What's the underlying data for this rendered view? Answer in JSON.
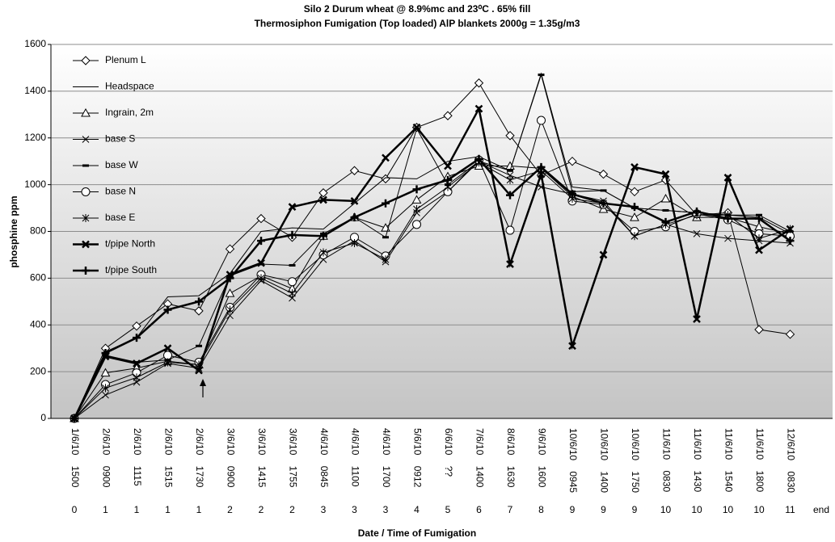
{
  "chart_data": {
    "type": "line",
    "title": "Silo 2 Durum wheat @ 8.9%mc and 23⁰C . 65% fill",
    "subtitle": "Thermosiphon Fumigation (Top loaded) AlP blankets 2000g = 1.35g/m3",
    "ylabel": "phosphine ppm",
    "xlabel": "Date / Time of Fumigation",
    "categories": [
      "1/6/10 1500",
      "2/6/10 0900",
      "2/6/10 1115",
      "2/6/10 1515",
      "2/6/10 1730",
      "3/6/10 0900",
      "3/6/10 1415",
      "3/6/10 1755",
      "4/6/10 0845",
      "4/6/10 1100",
      "4/6/10 1700",
      "5/6/10 0912",
      "6/6/10 ??",
      "7/6/10 1400",
      "8/6/10 1630",
      "9/6/10 1600",
      "10/6/10 0945",
      "10/6/10 1400",
      "10/6/10 1750",
      "11/6/10 0830",
      "11/6/10 1430",
      "11/6/10 1540",
      "11/6/10 1800",
      "12/6/10 0830"
    ],
    "days": [
      0,
      1,
      1,
      1,
      1,
      2,
      2,
      2,
      3,
      3,
      3,
      4,
      5,
      6,
      7,
      8,
      9,
      9,
      9,
      10,
      10,
      10,
      10,
      11,
      "end"
    ],
    "ylim": [
      0,
      1600
    ],
    "yticks": [
      0,
      200,
      400,
      600,
      800,
      1000,
      1200,
      1400,
      1600
    ],
    "grid": true,
    "legend": "upper left",
    "series": [
      {
        "name": "Plenum L",
        "color": "#000000",
        "width": 1,
        "marker": "diamond",
        "values": [
          0,
          300,
          395,
          490,
          460,
          725,
          855,
          775,
          965,
          1060,
          1025,
          1245,
          1295,
          1435,
          1210,
          1040,
          1100,
          1045,
          970,
          1020,
          870,
          880,
          380,
          360
        ]
      },
      {
        "name": "Headspace",
        "color": "#000000",
        "width": 1,
        "marker": "none",
        "values": [
          0,
          285,
          345,
          520,
          525,
          620,
          800,
          815,
          810,
          920,
          1030,
          1025,
          1100,
          1120,
          1060,
          1475,
          990,
          975,
          900,
          890,
          880,
          870,
          860,
          790
        ]
      },
      {
        "name": "Ingrain, 2m",
        "color": "#000000",
        "width": 1,
        "marker": "triangle",
        "values": [
          0,
          195,
          215,
          245,
          230,
          535,
          610,
          555,
          780,
          860,
          815,
          935,
          1035,
          1080,
          1080,
          1070,
          950,
          895,
          860,
          940,
          860,
          860,
          820,
          790
        ]
      },
      {
        "name": "base S",
        "color": "#000000",
        "width": 1,
        "marker": "x",
        "values": [
          0,
          100,
          155,
          235,
          215,
          440,
          590,
          515,
          680,
          760,
          670,
          880,
          970,
          1100,
          1040,
          990,
          960,
          930,
          780,
          830,
          790,
          770,
          760,
          750
        ]
      },
      {
        "name": "base W",
        "color": "#000000",
        "width": 1,
        "marker": "dash",
        "values": [
          0,
          270,
          240,
          250,
          310,
          610,
          660,
          655,
          790,
          860,
          775,
          1240,
          1000,
          1100,
          1060,
          1470,
          970,
          975,
          900,
          890,
          880,
          870,
          870,
          800
        ]
      },
      {
        "name": "base N",
        "color": "#000000",
        "width": 1,
        "marker": "circle",
        "values": [
          0,
          145,
          195,
          270,
          240,
          475,
          615,
          585,
          700,
          775,
          695,
          830,
          970,
          1105,
          805,
          1275,
          930,
          915,
          800,
          820,
          875,
          850,
          790,
          780
        ]
      },
      {
        "name": "base E",
        "color": "#000000",
        "width": 1,
        "marker": "asterisk",
        "values": [
          0,
          130,
          175,
          240,
          230,
          465,
          600,
          535,
          710,
          750,
          680,
          895,
          990,
          1095,
          1020,
          1060,
          940,
          920,
          780,
          830,
          870,
          870,
          770,
          810
        ]
      },
      {
        "name": "t/pipe North",
        "color": "#000000",
        "width": 2.5,
        "marker": "x",
        "values": [
          0,
          265,
          235,
          300,
          205,
          615,
          665,
          905,
          935,
          930,
          1115,
          1245,
          1080,
          1325,
          660,
          1045,
          310,
          700,
          1075,
          1045,
          425,
          1030,
          720,
          810
        ]
      },
      {
        "name": "t/pipe South",
        "color": "#000000",
        "width": 2.5,
        "marker": "plus",
        "values": [
          0,
          280,
          345,
          465,
          500,
          600,
          760,
          785,
          780,
          860,
          920,
          980,
          1020,
          1110,
          955,
          1075,
          960,
          920,
          905,
          840,
          885,
          855,
          855,
          760
        ]
      }
    ]
  }
}
